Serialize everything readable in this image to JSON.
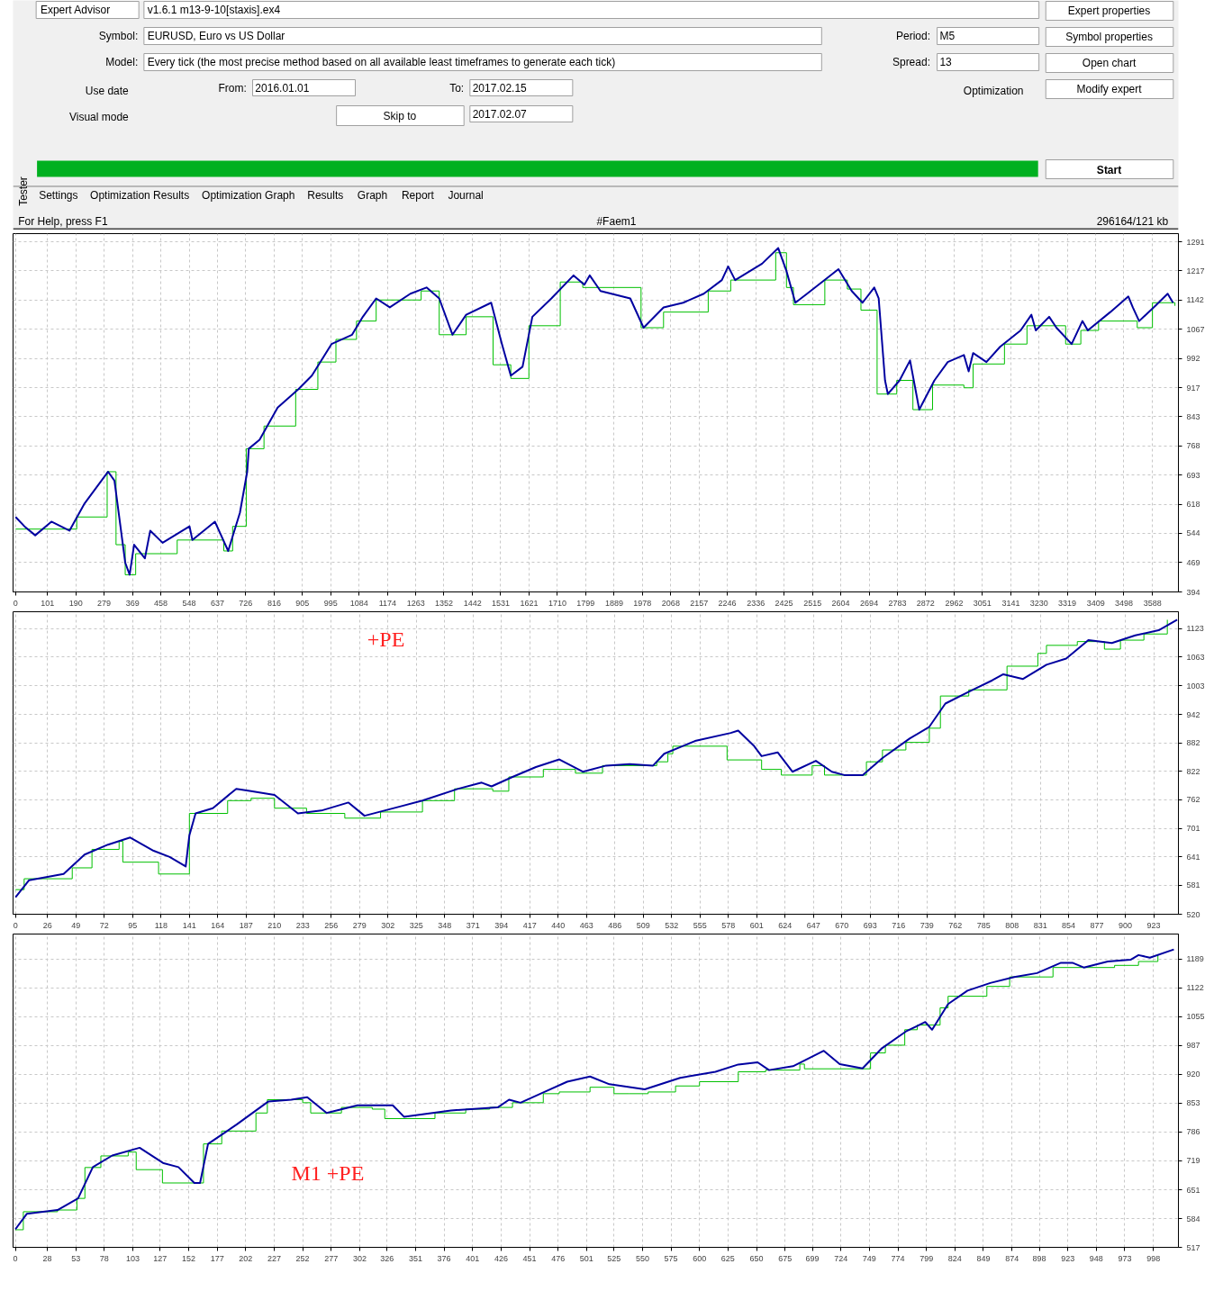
{
  "chart_data": [
    {
      "type": "other",
      "annotations": [
        "Expert Advisor",
        "v1.6.1 m13-9-10[staxis].ex4",
        "Symbol:",
        "EURUSD, Euro vs US Dollar",
        "Model:",
        "Every tick (the most precise method based on all available least timeframes to generate each tick)",
        "Use date",
        "From:",
        "2016.01.01",
        "To:",
        "2017.02.15",
        "Visual mode",
        "Skip to",
        "2017.02.07",
        "Period:",
        "M5",
        "Spread:",
        "13",
        "Optimization",
        "Expert properties",
        "Symbol properties",
        "Open chart",
        "Modify expert",
        "Start",
        "Tester",
        "Settings",
        "Optimization Results",
        "Optimization Graph",
        "Results",
        "Graph",
        "Report",
        "Journal",
        "For Help, press F1",
        "#Faem1",
        "296164/121 kb"
      ]
    },
    {
      "type": "line",
      "grid": true,
      "xlim": [
        -8,
        3670
      ],
      "ylim": [
        394,
        1312
      ],
      "xticks": [
        0,
        101,
        190,
        279,
        369,
        458,
        548,
        637,
        726,
        816,
        905,
        995,
        1084,
        1174,
        1263,
        1352,
        1442,
        1531,
        1621,
        1710,
        1799,
        1889,
        1978,
        2068,
        2157,
        2246,
        2336,
        2425,
        2515,
        2604,
        2694,
        2783,
        2872,
        2962,
        3051,
        3141,
        3230,
        3319,
        3409,
        3498,
        3588
      ],
      "yticks": [
        394,
        469,
        544,
        618,
        693,
        768,
        843,
        917,
        992,
        1067,
        1142,
        1217,
        1291
      ],
      "series": [
        {
          "type": "step",
          "color": "#00c000",
          "x": [
            0,
            193,
            289,
            317,
            346,
            379,
            510,
            657,
            685,
            728,
            784,
            884,
            954,
            1011,
            1076,
            1138,
            1280,
            1337,
            1422,
            1507,
            1563,
            1620,
            1719,
            1790,
            1974,
            2045,
            2186,
            2257,
            2399,
            2433,
            2455,
            2554,
            2625,
            2668,
            2719,
            2781,
            2832,
            2894,
            2993,
            3022,
            3121,
            3192,
            3314,
            3362,
            3418,
            3540,
            3588,
            3659
          ],
          "values": [
            555,
            586,
            702,
            515,
            438,
            492,
            527,
            499,
            562,
            761,
            819,
            913,
            983,
            1041,
            1088,
            1142,
            1165,
            1053,
            1099,
            976,
            941,
            1076,
            1188,
            1174,
            1071,
            1111,
            1165,
            1193,
            1263,
            1174,
            1130,
            1193,
            1170,
            1116,
            901,
            936,
            861,
            924,
            917,
            978,
            1029,
            1076,
            1029,
            1064,
            1088,
            1071,
            1135,
            1127
          ]
        },
        {
          "type": "line",
          "color": "#0000a0",
          "x": [
            0,
            28,
            62,
            113,
            170,
            218,
            292,
            312,
            346,
            360,
            374,
            408,
            425,
            464,
            549,
            558,
            629,
            671,
            708,
            731,
            736,
            770,
            827,
            892,
            935,
            997,
            1062,
            1096,
            1138,
            1181,
            1246,
            1297,
            1337,
            1379,
            1422,
            1501,
            1535,
            1563,
            1600,
            1631,
            1691,
            1761,
            1795,
            1812,
            1846,
            1940,
            1982,
            2045,
            2107,
            2172,
            2229,
            2249,
            2271,
            2356,
            2407,
            2433,
            2461,
            2498,
            2597,
            2639,
            2673,
            2710,
            2724,
            2744,
            2753,
            2790,
            2823,
            2852,
            2900,
            2942,
            2993,
            3008,
            3022,
            3064,
            3107,
            3172,
            3206,
            3220,
            3262,
            3285,
            3333,
            3367,
            3384,
            3455,
            3512,
            3526,
            3546,
            3597,
            3636,
            3653
          ],
          "values": [
            586,
            562,
            539,
            574,
            551,
            621,
            702,
            679,
            469,
            438,
            515,
            480,
            551,
            520,
            562,
            527,
            574,
            499,
            597,
            702,
            761,
            784,
            866,
            913,
            948,
            1029,
            1053,
            1099,
            1146,
            1123,
            1158,
            1174,
            1146,
            1053,
            1104,
            1135,
            1029,
            948,
            971,
            1099,
            1146,
            1205,
            1181,
            1205,
            1165,
            1146,
            1071,
            1123,
            1135,
            1158,
            1193,
            1228,
            1193,
            1235,
            1275,
            1216,
            1135,
            1158,
            1221,
            1165,
            1135,
            1174,
            1146,
            936,
            901,
            936,
            987,
            861,
            936,
            983,
            1001,
            959,
            1006,
            983,
            1022,
            1064,
            1104,
            1064,
            1099,
            1071,
            1029,
            1088,
            1064,
            1111,
            1151,
            1123,
            1088,
            1127,
            1158,
            1135
          ]
        }
      ]
    },
    {
      "type": "line",
      "grid": true,
      "xlim": [
        -2,
        943
      ],
      "ylim": [
        520,
        1159
      ],
      "xticks": [
        0,
        26,
        49,
        72,
        95,
        118,
        141,
        164,
        187,
        210,
        233,
        256,
        279,
        302,
        325,
        348,
        371,
        394,
        417,
        440,
        463,
        486,
        509,
        532,
        555,
        578,
        601,
        624,
        647,
        670,
        693,
        716,
        739,
        762,
        785,
        808,
        831,
        854,
        877,
        900,
        923
      ],
      "yticks": [
        520,
        581,
        641,
        701,
        762,
        822,
        882,
        942,
        1003,
        1063,
        1123
      ],
      "annotations": [
        "+PE"
      ],
      "series": [
        {
          "type": "step",
          "color": "#00c000",
          "x": [
            0,
            7,
            46,
            62,
            84,
            87,
            116,
            141,
            172,
            191,
            210,
            236,
            267,
            296,
            330,
            356,
            387,
            400,
            428,
            454,
            476,
            520,
            529,
            533,
            577,
            605,
            621,
            646,
            656,
            690,
            703,
            722,
            741,
            750,
            773,
            804,
            829,
            836,
            861,
            883,
            896,
            915,
            934
          ],
          "values": [
            572,
            595,
            618,
            657,
            674,
            630,
            605,
            733,
            760,
            765,
            744,
            733,
            723,
            736,
            760,
            785,
            780,
            810,
            826,
            818,
            834,
            842,
            859,
            875,
            846,
            826,
            814,
            834,
            814,
            842,
            867,
            883,
            913,
            981,
            994,
            1044,
            1071,
            1088,
            1096,
            1080,
            1099,
            1112,
            1142
          ]
        },
        {
          "type": "line",
          "color": "#0000a0",
          "x": [
            0,
            11,
            39,
            56,
            75,
            93,
            112,
            125,
            138,
            141,
            146,
            160,
            179,
            191,
            210,
            229,
            248,
            270,
            283,
            311,
            330,
            359,
            378,
            386,
            403,
            422,
            441,
            460,
            479,
            498,
            517,
            526,
            551,
            580,
            586,
            599,
            605,
            618,
            630,
            649,
            662,
            672,
            687,
            703,
            725,
            741,
            754,
            773,
            792,
            801,
            817,
            836,
            852,
            870,
            889,
            908,
            927,
            942
          ],
          "values": [
            556,
            592,
            605,
            646,
            667,
            682,
            654,
            641,
            621,
            687,
            733,
            744,
            785,
            780,
            772,
            733,
            739,
            756,
            728,
            747,
            760,
            785,
            798,
            790,
            810,
            831,
            847,
            821,
            834,
            837,
            834,
            859,
            886,
            903,
            908,
            875,
            854,
            862,
            821,
            844,
            821,
            814,
            814,
            850,
            891,
            916,
            965,
            990,
            1014,
            1027,
            1017,
            1047,
            1060,
            1099,
            1093,
            1109,
            1120,
            1142
          ]
        }
      ]
    },
    {
      "type": "line",
      "grid": true,
      "xlim": [
        -2,
        1020
      ],
      "ylim": [
        517,
        1247
      ],
      "xticks": [
        0,
        28,
        53,
        78,
        103,
        127,
        152,
        177,
        202,
        227,
        252,
        277,
        302,
        326,
        351,
        376,
        401,
        426,
        451,
        476,
        501,
        525,
        550,
        575,
        600,
        625,
        650,
        675,
        699,
        724,
        749,
        774,
        799,
        824,
        849,
        874,
        898,
        923,
        948,
        973,
        998
      ],
      "yticks": [
        517,
        584,
        651,
        719,
        786,
        853,
        920,
        987,
        1055,
        1122,
        1189
      ],
      "annotations": [
        "M1 +PE"
      ],
      "series": [
        {
          "type": "step",
          "color": "#00c000",
          "x": [
            0,
            7,
            37,
            54,
            61,
            75,
            99,
            106,
            129,
            165,
            181,
            211,
            221,
            252,
            259,
            286,
            313,
            324,
            368,
            395,
            416,
            436,
            463,
            477,
            504,
            525,
            538,
            555,
            579,
            600,
            634,
            658,
            688,
            692,
            729,
            750,
            763,
            780,
            791,
            811,
            818,
            852,
            872,
            910,
            937,
            964,
            985,
            1002
          ],
          "values": [
            558,
            600,
            604,
            631,
            703,
            730,
            739,
            698,
            667,
            758,
            788,
            830,
            861,
            854,
            830,
            843,
            839,
            817,
            830,
            839,
            843,
            854,
            875,
            879,
            890,
            875,
            875,
            879,
            893,
            903,
            926,
            930,
            944,
            933,
            933,
            970,
            988,
            1024,
            1035,
            1075,
            1102,
            1125,
            1147,
            1169,
            1169,
            1174,
            1183,
            1198
          ]
        },
        {
          "type": "line",
          "color": "#0000a0",
          "x": [
            0,
            10,
            37,
            55,
            68,
            85,
            109,
            130,
            143,
            157,
            162,
            169,
            194,
            222,
            242,
            256,
            273,
            300,
            331,
            341,
            382,
            423,
            433,
            443,
            464,
            484,
            504,
            521,
            552,
            583,
            614,
            634,
            651,
            661,
            682,
            709,
            723,
            743,
            760,
            781,
            798,
            804,
            818,
            835,
            855,
            876,
            896,
            917,
            927,
            937,
            958,
            978,
            985,
            995,
            1016
          ],
          "values": [
            559,
            595,
            604,
            631,
            704,
            731,
            749,
            713,
            704,
            667,
            667,
            758,
            803,
            857,
            861,
            867,
            830,
            848,
            848,
            821,
            836,
            843,
            861,
            854,
            879,
            903,
            915,
            897,
            885,
            912,
            926,
            943,
            948,
            930,
            939,
            975,
            944,
            934,
            981,
            1020,
            1042,
            1024,
            1084,
            1115,
            1133,
            1147,
            1156,
            1180,
            1180,
            1169,
            1183,
            1187,
            1198,
            1192,
            1211
          ]
        }
      ]
    }
  ]
}
